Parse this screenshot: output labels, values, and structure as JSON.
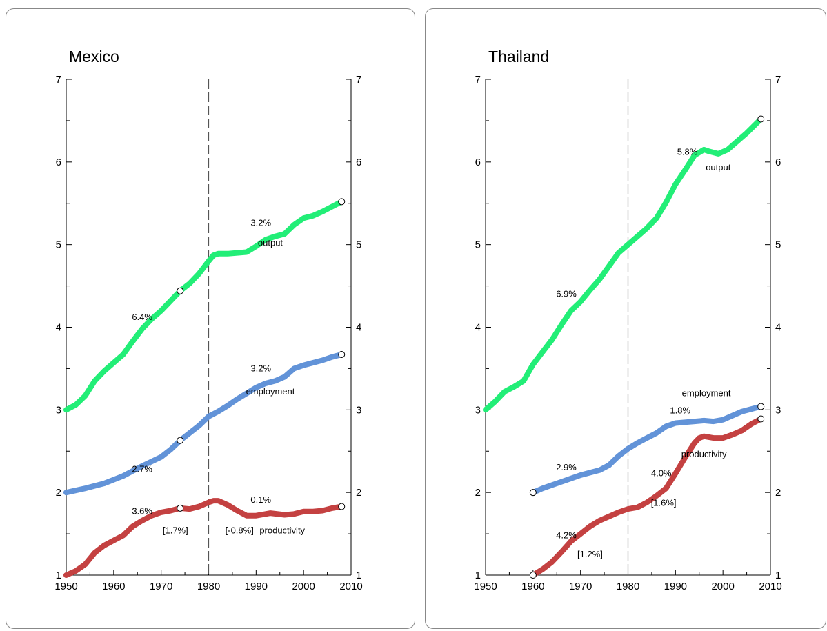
{
  "chart_data": [
    {
      "type": "line",
      "title": "Mexico",
      "xlim": [
        1950,
        2010
      ],
      "ylim": [
        1,
        7
      ],
      "x_ticks": [
        1950,
        1960,
        1970,
        1980,
        1990,
        2000,
        2010
      ],
      "y_ticks": [
        1,
        2,
        3,
        4,
        5,
        6,
        7
      ],
      "vline": 1980,
      "series": [
        {
          "name": "output",
          "color": "#22ee77",
          "x": [
            1950,
            1952,
            1954,
            1956,
            1958,
            1960,
            1962,
            1964,
            1966,
            1968,
            1970,
            1972,
            1974,
            1976,
            1978,
            1980,
            1981,
            1982,
            1984,
            1986,
            1988,
            1990,
            1992,
            1994,
            1996,
            1998,
            2000,
            2002,
            2004,
            2006,
            2008
          ],
          "y": [
            3.0,
            3.06,
            3.17,
            3.35,
            3.47,
            3.57,
            3.67,
            3.83,
            3.98,
            4.1,
            4.2,
            4.32,
            4.44,
            4.53,
            4.65,
            4.8,
            4.87,
            4.89,
            4.89,
            4.9,
            4.91,
            4.98,
            5.06,
            5.1,
            5.13,
            5.24,
            5.32,
            5.35,
            5.4,
            5.46,
            5.52
          ],
          "markers": [
            1974,
            2008
          ]
        },
        {
          "name": "employment",
          "color": "#6293d8",
          "x": [
            1950,
            1954,
            1958,
            1962,
            1966,
            1970,
            1972,
            1974,
            1976,
            1978,
            1980,
            1982,
            1984,
            1986,
            1988,
            1990,
            1992,
            1994,
            1996,
            1998,
            2000,
            2002,
            2004,
            2006,
            2008
          ],
          "y": [
            2.0,
            2.05,
            2.11,
            2.2,
            2.32,
            2.43,
            2.52,
            2.63,
            2.72,
            2.81,
            2.92,
            2.98,
            3.05,
            3.13,
            3.2,
            3.27,
            3.32,
            3.35,
            3.4,
            3.5,
            3.54,
            3.57,
            3.6,
            3.64,
            3.67
          ],
          "markers": [
            1974,
            2008
          ]
        },
        {
          "name": "productivity",
          "color": "#c44141",
          "x": [
            1950,
            1952,
            1954,
            1956,
            1958,
            1960,
            1962,
            1964,
            1966,
            1968,
            1970,
            1972,
            1974,
            1976,
            1978,
            1980,
            1981,
            1982,
            1984,
            1986,
            1988,
            1990,
            1993,
            1996,
            1998,
            2000,
            2002,
            2004,
            2006,
            2008
          ],
          "y": [
            1.0,
            1.05,
            1.13,
            1.27,
            1.36,
            1.42,
            1.48,
            1.59,
            1.66,
            1.72,
            1.76,
            1.78,
            1.81,
            1.8,
            1.83,
            1.88,
            1.9,
            1.9,
            1.85,
            1.78,
            1.72,
            1.72,
            1.75,
            1.73,
            1.74,
            1.77,
            1.77,
            1.78,
            1.81,
            1.83
          ],
          "markers": [
            1974,
            2008
          ]
        }
      ],
      "annotations": [
        {
          "text": "6.4%",
          "x": 1966,
          "y": 4.12
        },
        {
          "text": "3.2%",
          "x": 1991,
          "y": 5.26
        },
        {
          "text": "output",
          "x": 1993,
          "y": 5.02
        },
        {
          "text": "2.7%",
          "x": 1966,
          "y": 2.28
        },
        {
          "text": "3.2%",
          "x": 1991,
          "y": 3.5
        },
        {
          "text": "employment",
          "x": 1993,
          "y": 3.22
        },
        {
          "text": "3.6%",
          "x": 1966,
          "y": 1.77
        },
        {
          "text": "[1.7%]",
          "x": 1973,
          "y": 1.54
        },
        {
          "text": "0.1%",
          "x": 1991,
          "y": 1.91
        },
        {
          "text": "[-0.8%]",
          "x": 1986.5,
          "y": 1.54
        },
        {
          "text": "productivity",
          "x": 1995.5,
          "y": 1.54
        }
      ]
    },
    {
      "type": "line",
      "title": "Thailand",
      "xlim": [
        1950,
        2010
      ],
      "ylim": [
        1,
        7
      ],
      "x_ticks": [
        1950,
        1960,
        1970,
        1980,
        1990,
        2000,
        2010
      ],
      "y_ticks": [
        1,
        2,
        3,
        4,
        5,
        6,
        7
      ],
      "vline": 1980,
      "series": [
        {
          "name": "output",
          "color": "#22ee77",
          "x": [
            1950,
            1952,
            1954,
            1956,
            1958,
            1960,
            1962,
            1964,
            1966,
            1968,
            1970,
            1972,
            1974,
            1976,
            1978,
            1980,
            1982,
            1984,
            1986,
            1988,
            1990,
            1992,
            1994,
            1996,
            1997,
            1999,
            2001,
            2003,
            2005,
            2008
          ],
          "y": [
            3.0,
            3.1,
            3.22,
            3.28,
            3.35,
            3.55,
            3.7,
            3.85,
            4.03,
            4.2,
            4.31,
            4.45,
            4.58,
            4.74,
            4.9,
            5.0,
            5.1,
            5.2,
            5.32,
            5.51,
            5.73,
            5.9,
            6.08,
            6.15,
            6.13,
            6.1,
            6.15,
            6.25,
            6.35,
            6.52
          ],
          "markers": [
            2008
          ]
        },
        {
          "name": "employment",
          "color": "#6293d8",
          "x": [
            1960,
            1962,
            1964,
            1966,
            1968,
            1970,
            1972,
            1974,
            1976,
            1978,
            1980,
            1982,
            1984,
            1986,
            1988,
            1990,
            1992,
            1994,
            1996,
            1998,
            2000,
            2002,
            2004,
            2006,
            2008
          ],
          "y": [
            2.0,
            2.05,
            2.09,
            2.13,
            2.17,
            2.21,
            2.24,
            2.27,
            2.33,
            2.44,
            2.53,
            2.6,
            2.66,
            2.72,
            2.8,
            2.84,
            2.85,
            2.86,
            2.87,
            2.86,
            2.88,
            2.93,
            2.98,
            3.01,
            3.04
          ],
          "markers": [
            1960,
            2008
          ]
        },
        {
          "name": "productivity",
          "color": "#c44141",
          "x": [
            1960,
            1962,
            1964,
            1966,
            1968,
            1970,
            1972,
            1974,
            1976,
            1978,
            1980,
            1982,
            1984,
            1986,
            1988,
            1990,
            1992,
            1994,
            1995,
            1996,
            1998,
            2000,
            2002,
            2004,
            2006,
            2008
          ],
          "y": [
            1.0,
            1.07,
            1.16,
            1.28,
            1.41,
            1.5,
            1.59,
            1.66,
            1.71,
            1.76,
            1.8,
            1.82,
            1.88,
            1.96,
            2.05,
            2.23,
            2.42,
            2.6,
            2.66,
            2.68,
            2.66,
            2.66,
            2.7,
            2.75,
            2.83,
            2.89
          ],
          "markers": [
            1960,
            2008
          ]
        }
      ],
      "annotations": [
        {
          "text": "6.9%",
          "x": 1967,
          "y": 4.4
        },
        {
          "text": "5.8%",
          "x": 1992.5,
          "y": 6.12
        },
        {
          "text": "output",
          "x": 1999,
          "y": 5.93
        },
        {
          "text": "employment",
          "x": 1996.5,
          "y": 3.2
        },
        {
          "text": "1.8%",
          "x": 1991,
          "y": 2.99
        },
        {
          "text": "2.9%",
          "x": 1967,
          "y": 2.3
        },
        {
          "text": "productivity",
          "x": 1996,
          "y": 2.46
        },
        {
          "text": "4.0%",
          "x": 1987,
          "y": 2.23
        },
        {
          "text": "[1.6%]",
          "x": 1987.5,
          "y": 1.87
        },
        {
          "text": "4.2%",
          "x": 1967,
          "y": 1.48
        },
        {
          "text": "[1.2%]",
          "x": 1972,
          "y": 1.25
        }
      ]
    }
  ]
}
